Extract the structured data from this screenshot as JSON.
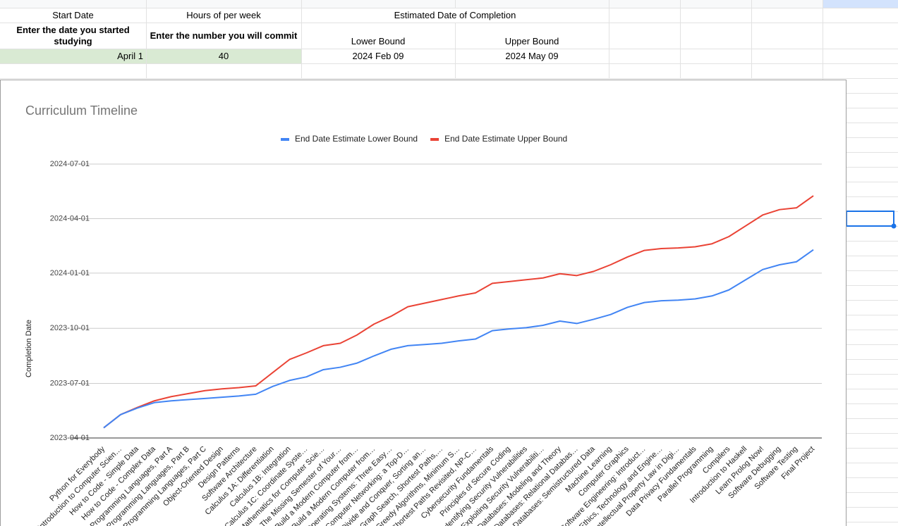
{
  "sheet": {
    "rows": [
      [
        "Start Date",
        "Hours of per week",
        "Estimated Date of Completion"
      ],
      [
        "Enter the date you started studying",
        "Enter the number you will commit",
        "Lower Bound",
        "Upper Bound"
      ],
      [
        "April 1",
        "40",
        "2024 Feb 09",
        "2024 May 09"
      ]
    ]
  },
  "chart_data": {
    "type": "line",
    "title": "Curriculum Timeline",
    "y_label": "Completion Date",
    "categories": [
      "Python for Everybody",
      "Introduction to Computer Scien…",
      "How to Code - Simple Data",
      "How to Code - Complex Data",
      "Programming Languages, Part A",
      "Programming Languages, Part B",
      "Programming Languages, Part C",
      "Object-Oriented Design",
      "Design Patterns",
      "Software Architecture",
      "Calculus 1A: Differentiation",
      "Calculus 1B: Integration",
      "Calculus 1C: Coordinate Syste…",
      "Mathematics for Computer Scie…",
      "The Missing Semester of Your…",
      "Build a Modern Computer from…",
      "Build a Modern Computer from…",
      "Operating Systems: Three Easy…",
      "Computer Networking: a Top-D…",
      "Divide and Conquer, Sorting an…",
      "Graph Search, Shortest Paths,…",
      "Greedy Algorithms, Minimum S…",
      "Shortest Paths Revisited, NP-C…",
      "Cybersecurity Fundamentals",
      "Principles of Secure Coding",
      "Identifying Security Vulnerabilities",
      "Exploiting Security Vulnerabiliti…",
      "Databases: Modeling and Theory",
      "Databases: Relational Databas…",
      "Databases: Semistructured Data",
      "Machine Learning",
      "Computer Graphics",
      "Software Engineering: Introduct…",
      "Ethics, Technology and Engine…",
      "Intellectual Property Law in Digi…",
      "Data Privacy Fundamentals",
      "Parallel Programming",
      "Compilers",
      "Introduction to Haskell",
      "Learn Prolog Now!",
      "Software Debugging",
      "Software Testing",
      "Final Project"
    ],
    "series": [
      {
        "name": "End Date Estimate Lower Bound",
        "color": "#4285f4",
        "values": [
          "2023-04-18",
          "2023-05-10",
          "2023-05-21",
          "2023-05-30",
          "2023-06-02",
          "2023-06-04",
          "2023-06-06",
          "2023-06-08",
          "2023-06-10",
          "2023-06-13",
          "2023-06-26",
          "2023-07-06",
          "2023-07-12",
          "2023-07-24",
          "2023-07-28",
          "2023-08-04",
          "2023-08-16",
          "2023-08-27",
          "2023-09-02",
          "2023-09-04",
          "2023-09-06",
          "2023-09-10",
          "2023-09-13",
          "2023-09-27",
          "2023-09-30",
          "2023-10-02",
          "2023-10-06",
          "2023-10-13",
          "2023-10-09",
          "2023-10-16",
          "2023-10-24",
          "2023-11-05",
          "2023-11-13",
          "2023-11-16",
          "2023-11-17",
          "2023-11-19",
          "2023-11-24",
          "2023-12-04",
          "2023-12-21",
          "2024-01-07",
          "2024-01-15",
          "2024-01-20",
          "2024-02-09"
        ]
      },
      {
        "name": "End Date Estimate Upper Bound",
        "color": "#ea4335",
        "values": [
          "2023-04-18",
          "2023-05-10",
          "2023-05-22",
          "2023-06-02",
          "2023-06-09",
          "2023-06-14",
          "2023-06-19",
          "2023-06-22",
          "2023-06-24",
          "2023-06-27",
          "2023-07-19",
          "2023-08-10",
          "2023-08-21",
          "2023-09-02",
          "2023-09-06",
          "2023-09-20",
          "2023-10-08",
          "2023-10-21",
          "2023-11-06",
          "2023-11-12",
          "2023-11-18",
          "2023-11-24",
          "2023-11-29",
          "2023-12-15",
          "2023-12-18",
          "2023-12-21",
          "2023-12-24",
          "2023-12-31",
          "2023-12-28",
          "2024-01-04",
          "2024-01-15",
          "2024-01-28",
          "2024-02-08",
          "2024-02-11",
          "2024-02-12",
          "2024-02-14",
          "2024-02-19",
          "2024-03-02",
          "2024-03-20",
          "2024-04-07",
          "2024-04-16",
          "2024-04-19",
          "2024-05-09"
        ]
      }
    ],
    "ylim": [
      "2023-04-01",
      "2024-07-01"
    ],
    "yticks": [
      "2023-04-01",
      "2023-07-01",
      "2023-10-01",
      "2024-01-01",
      "2024-04-01",
      "2024-07-01"
    ],
    "grid": true,
    "legend": "top"
  }
}
